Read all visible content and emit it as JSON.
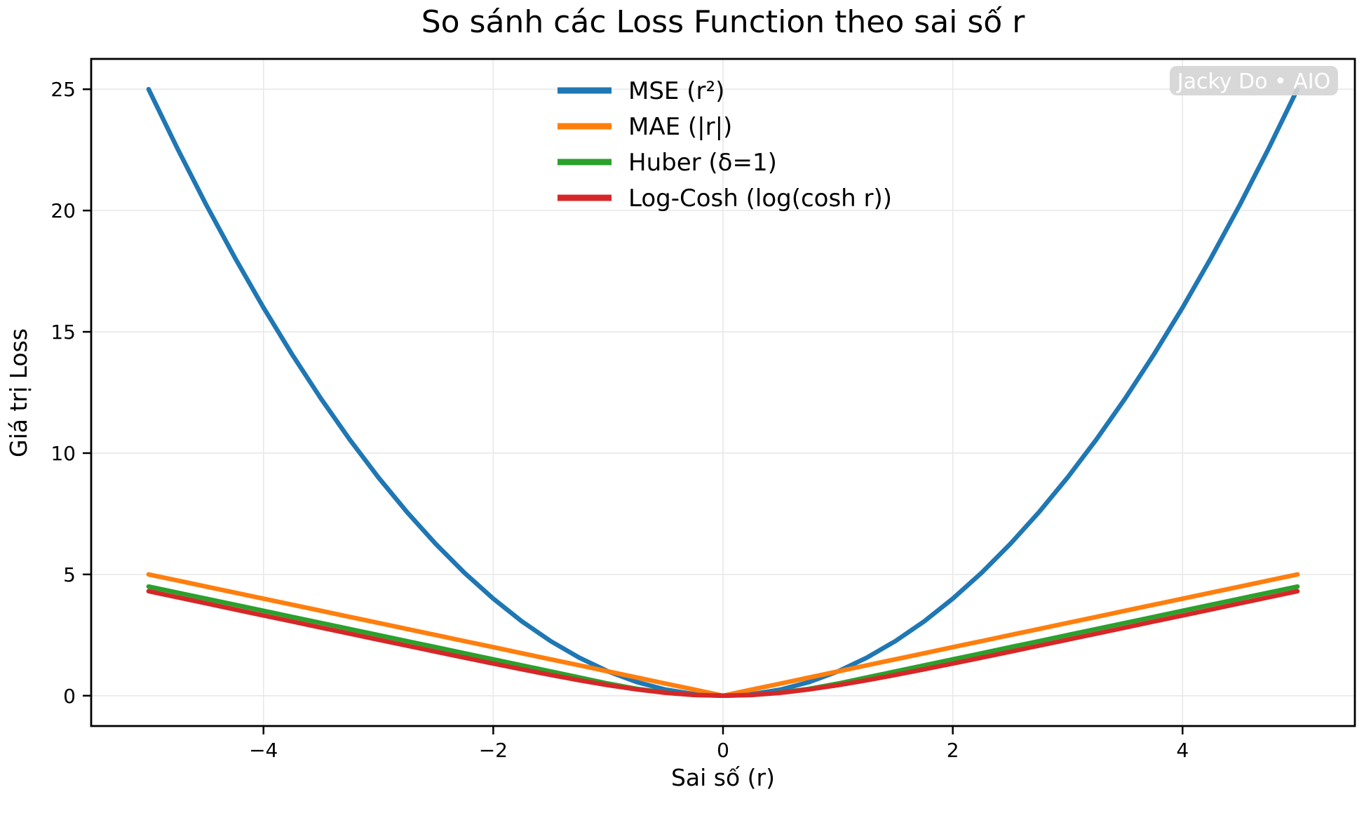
{
  "watermark": {
    "text": "Jacky Do • AIO",
    "bg_color": "#d5d5d5",
    "fg_color": "#ffffff"
  },
  "style": {
    "grid_color": "#e8e8e8",
    "spine_color": "#000000",
    "background": "#ffffff"
  },
  "chart_data": {
    "type": "line",
    "title": "So sánh các Loss Function theo sai số r",
    "xlabel": "Sai số (r)",
    "ylabel": "Giá trị Loss",
    "xlim": [
      -5.5,
      5.5
    ],
    "ylim": [
      -1.25,
      26.25
    ],
    "xticks": [
      -4,
      -2,
      0,
      2,
      4
    ],
    "xtick_labels": [
      "−4",
      "−2",
      "0",
      "2",
      "4"
    ],
    "yticks": [
      0,
      5,
      10,
      15,
      20,
      25
    ],
    "ytick_labels": [
      "0",
      "5",
      "10",
      "15",
      "20",
      "25"
    ],
    "grid": true,
    "legend_position": "upper center",
    "x": [
      -5,
      -4.75,
      -4.5,
      -4.25,
      -4,
      -3.75,
      -3.5,
      -3.25,
      -3,
      -2.75,
      -2.5,
      -2.25,
      -2,
      -1.75,
      -1.5,
      -1.25,
      -1,
      -0.75,
      -0.5,
      -0.25,
      0,
      0.25,
      0.5,
      0.75,
      1,
      1.25,
      1.5,
      1.75,
      2,
      2.25,
      2.5,
      2.75,
      3,
      3.25,
      3.5,
      3.75,
      4,
      4.25,
      4.5,
      4.75,
      5
    ],
    "series": [
      {
        "name": "MSE (r²)",
        "color": "#1f77b4",
        "values": [
          25,
          22.5625,
          20.25,
          18.0625,
          16,
          14.0625,
          12.25,
          10.5625,
          9,
          7.5625,
          6.25,
          5.0625,
          4,
          3.0625,
          2.25,
          1.5625,
          1,
          0.5625,
          0.25,
          0.0625,
          0,
          0.0625,
          0.25,
          0.5625,
          1,
          1.5625,
          2.25,
          3.0625,
          4,
          5.0625,
          6.25,
          7.5625,
          9,
          10.5625,
          12.25,
          14.0625,
          16,
          18.0625,
          20.25,
          22.5625,
          25
        ]
      },
      {
        "name": "MAE (|r|)",
        "color": "#ff7f0e",
        "values": [
          5,
          4.75,
          4.5,
          4.25,
          4,
          3.75,
          3.5,
          3.25,
          3,
          2.75,
          2.5,
          2.25,
          2,
          1.75,
          1.5,
          1.25,
          1,
          0.75,
          0.5,
          0.25,
          0,
          0.25,
          0.5,
          0.75,
          1,
          1.25,
          1.5,
          1.75,
          2,
          2.25,
          2.5,
          2.75,
          3,
          3.25,
          3.5,
          3.75,
          4,
          4.25,
          4.5,
          4.75,
          5
        ]
      },
      {
        "name": "Huber (δ=1)",
        "color": "#2ca02c",
        "values": [
          4.5,
          4.25,
          4,
          3.75,
          3.5,
          3.25,
          3,
          2.75,
          2.5,
          2.25,
          2,
          1.75,
          1.5,
          1.25,
          1,
          0.75,
          0.5,
          0.28125,
          0.125,
          0.03125,
          0,
          0.03125,
          0.125,
          0.28125,
          0.5,
          0.75,
          1,
          1.25,
          1.5,
          1.75,
          2,
          2.25,
          2.5,
          2.75,
          3,
          3.25,
          3.5,
          3.75,
          4,
          4.25,
          4.5
        ]
      },
      {
        "name": "Log-Cosh (log(cosh r))",
        "color": "#d62728",
        "values": [
          4.3069,
          4.0569,
          3.807,
          3.5571,
          3.3072,
          3.0574,
          2.8078,
          2.5584,
          2.3093,
          2.0609,
          1.8136,
          1.5679,
          1.325,
          1.0866,
          0.8555,
          0.6358,
          0.4338,
          0.2583,
          0.1201,
          0.0309,
          0,
          0.0309,
          0.1201,
          0.2583,
          0.4338,
          0.6358,
          0.8555,
          1.0866,
          1.325,
          1.5679,
          1.8136,
          2.0609,
          2.3093,
          2.5584,
          2.8078,
          3.0574,
          3.3072,
          3.5571,
          3.807,
          4.0569,
          4.3069
        ]
      }
    ]
  }
}
